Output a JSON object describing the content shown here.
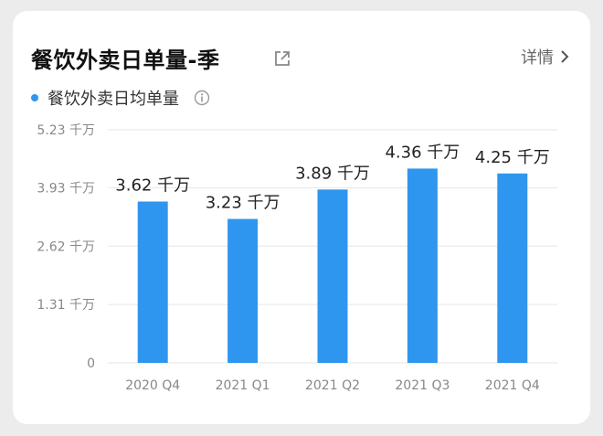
{
  "header": {
    "title": "餐饮外卖日单量-季",
    "detail_label": "详情",
    "external_icon": "external-link-icon",
    "chevron_icon": "chevron-right-icon"
  },
  "legend": {
    "label": "餐饮外卖日均单量",
    "info_icon": "info-icon"
  },
  "chart_data": {
    "type": "bar",
    "categories": [
      "2020 Q4",
      "2021 Q1",
      "2021 Q2",
      "2021 Q3",
      "2021 Q4"
    ],
    "series": [
      {
        "name": "餐饮外卖日均单量",
        "values": [
          3.62,
          3.23,
          3.89,
          4.36,
          4.25
        ],
        "color": "#2f96f0"
      }
    ],
    "data_labels": [
      "3.62 千万",
      "3.23 千万",
      "3.89 千万",
      "4.36 千万",
      "4.25 千万"
    ],
    "y_ticks": [
      0,
      1.31,
      2.62,
      3.93,
      5.23
    ],
    "y_tick_labels": [
      "0",
      "1.31 千万",
      "2.62 千万",
      "3.93 千万",
      "5.23 千万"
    ],
    "ylim": [
      0,
      5.23
    ],
    "grid": true,
    "legend_position": "top-left"
  }
}
